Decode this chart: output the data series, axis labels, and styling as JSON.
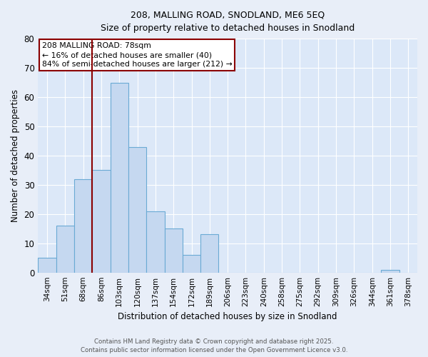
{
  "title1": "208, MALLING ROAD, SNODLAND, ME6 5EQ",
  "title2": "Size of property relative to detached houses in Snodland",
  "xlabel": "Distribution of detached houses by size in Snodland",
  "ylabel": "Number of detached properties",
  "bins": [
    "34sqm",
    "51sqm",
    "68sqm",
    "86sqm",
    "103sqm",
    "120sqm",
    "137sqm",
    "154sqm",
    "172sqm",
    "189sqm",
    "206sqm",
    "223sqm",
    "240sqm",
    "258sqm",
    "275sqm",
    "292sqm",
    "309sqm",
    "326sqm",
    "344sqm",
    "361sqm",
    "378sqm"
  ],
  "values": [
    5,
    16,
    32,
    35,
    65,
    43,
    21,
    15,
    6,
    13,
    0,
    0,
    0,
    0,
    0,
    0,
    0,
    0,
    0,
    1,
    0
  ],
  "bar_color": "#c5d8f0",
  "bar_edge_color": "#6aaad4",
  "subject_line_color": "#8b0000",
  "annotation_text": "208 MALLING ROAD: 78sqm\n← 16% of detached houses are smaller (40)\n84% of semi-detached houses are larger (212) →",
  "annotation_box_color": "#ffffff",
  "annotation_box_edge": "#8b0000",
  "ylim": [
    0,
    80
  ],
  "yticks": [
    0,
    10,
    20,
    30,
    40,
    50,
    60,
    70,
    80
  ],
  "footer1": "Contains HM Land Registry data © Crown copyright and database right 2025.",
  "footer2": "Contains public sector information licensed under the Open Government Licence v3.0.",
  "bg_color": "#e8eef8",
  "plot_bg_color": "#dce8f8"
}
